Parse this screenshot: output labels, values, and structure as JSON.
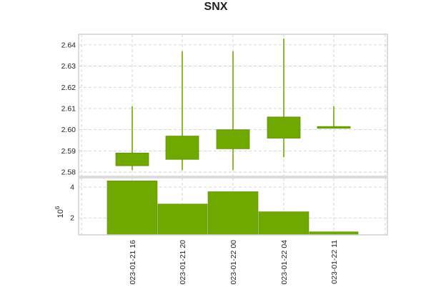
{
  "title": "SNX",
  "volume_axis_label": "10",
  "volume_axis_exponent": "6",
  "colors": {
    "up": "#6fa800",
    "up_edge": "#5f9400",
    "wick": "#6fa800",
    "grid": "#cccccc"
  },
  "chart_data": [
    {
      "type": "candlestick",
      "title": "SNX",
      "ylim": [
        2.578,
        2.645
      ],
      "yticks": [
        "2.58",
        "2.59",
        "2.60",
        "2.61",
        "2.62",
        "2.63",
        "2.64"
      ],
      "grid": true,
      "series": [
        {
          "open": 2.583,
          "high": 2.611,
          "low": 2.581,
          "close": 2.589
        },
        {
          "open": 2.586,
          "high": 2.637,
          "low": 2.581,
          "close": 2.597
        },
        {
          "open": 2.591,
          "high": 2.637,
          "low": 2.581,
          "close": 2.6
        },
        {
          "open": 2.596,
          "high": 2.643,
          "low": 2.587,
          "close": 2.606
        },
        {
          "open": 2.601,
          "high": 2.611,
          "low": 2.601,
          "close": 2.6015
        }
      ]
    },
    {
      "type": "bar",
      "ylabel": "10^6",
      "ylim": [
        0.9,
        4.6
      ],
      "yticks": [
        "2",
        "4"
      ],
      "grid": true,
      "categories": [
        "023-01-21 16",
        "023-01-21 20",
        "023-01-22 00",
        "023-01-22 04",
        "023-01-22 11"
      ],
      "values": [
        4.4,
        2.9,
        3.7,
        2.4,
        1.1
      ]
    }
  ]
}
